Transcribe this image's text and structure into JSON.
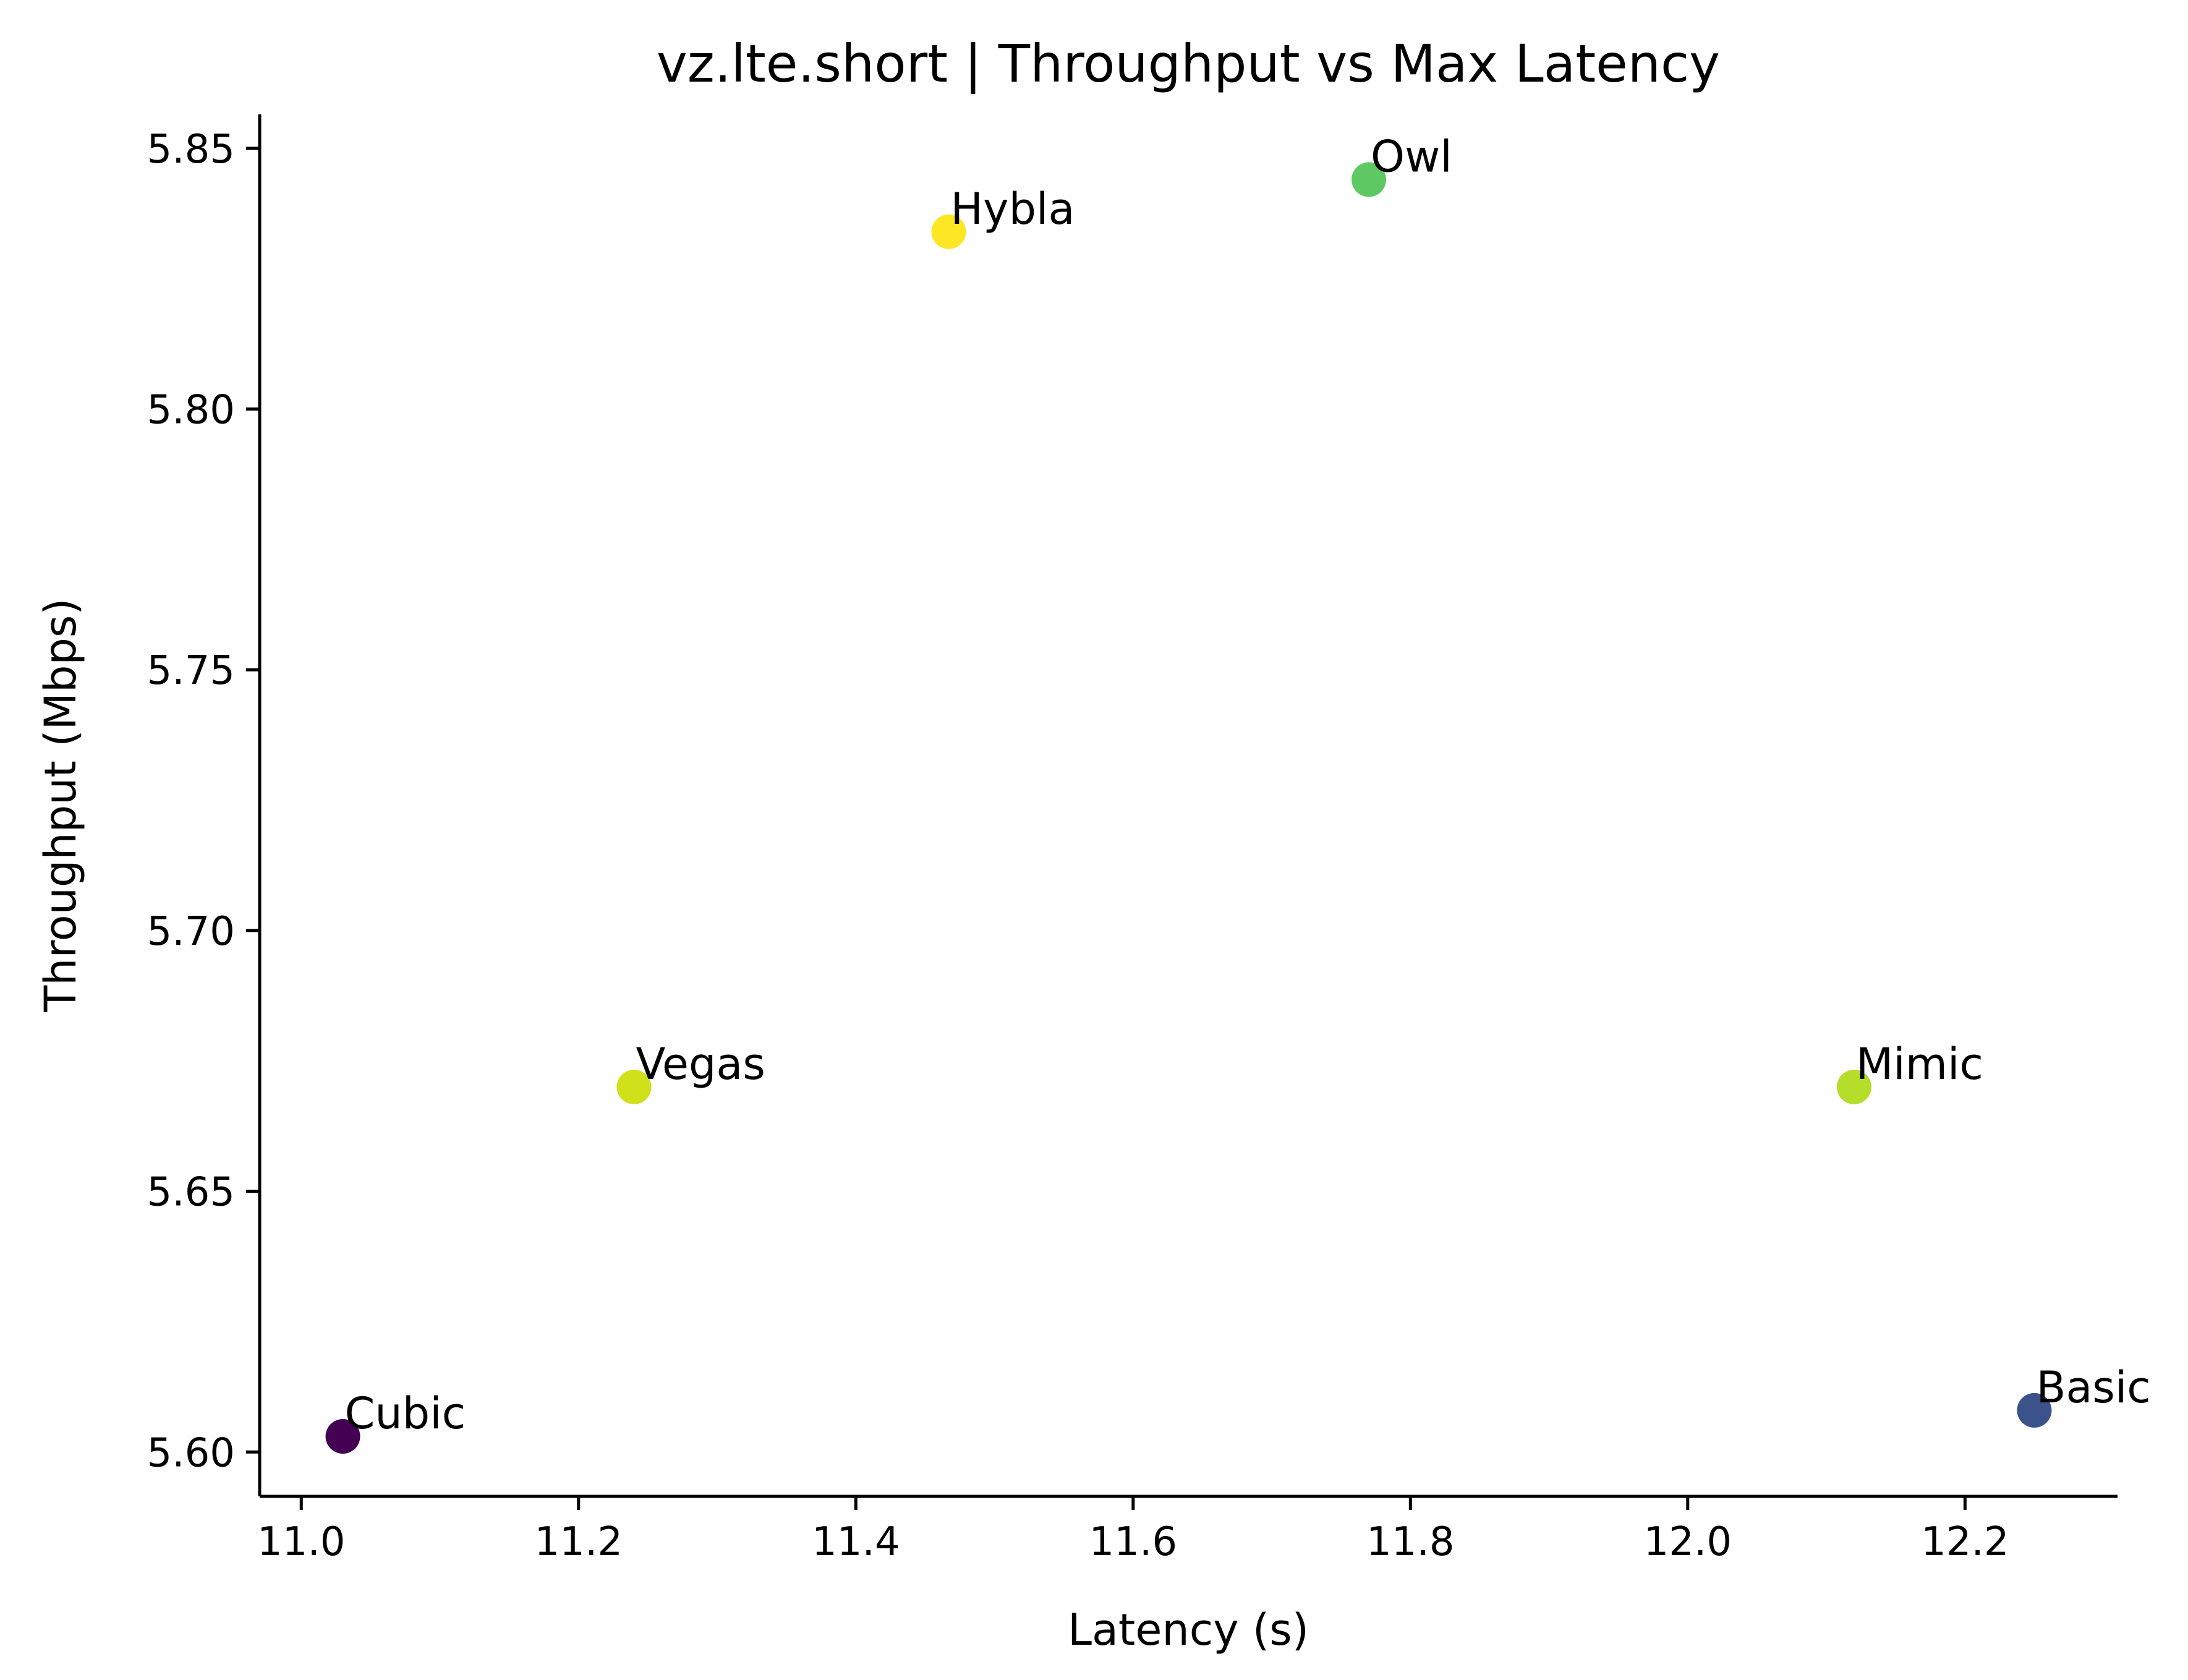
{
  "chart_data": {
    "type": "scatter",
    "title": "vz.lte.short | Throughput vs Max Latency",
    "xlabel": "Latency (s)",
    "ylabel": "Throughput (Mbps)",
    "xlim": [
      10.97,
      12.31
    ],
    "ylim": [
      5.5915,
      5.8565
    ],
    "xticks": [
      11.0,
      11.2,
      11.4,
      11.6,
      11.8,
      12.0,
      12.2
    ],
    "xtick_labels": [
      "11.0",
      "11.2",
      "11.4",
      "11.6",
      "11.8",
      "12.0",
      "12.2"
    ],
    "yticks": [
      5.6,
      5.65,
      5.7,
      5.75,
      5.8,
      5.85
    ],
    "ytick_labels": [
      "5.60",
      "5.65",
      "5.70",
      "5.75",
      "5.80",
      "5.85"
    ],
    "grid": false,
    "legend": "none",
    "points": [
      {
        "label": "Cubic",
        "x": 11.03,
        "y": 5.603,
        "color": "#440154"
      },
      {
        "label": "Vegas",
        "x": 11.24,
        "y": 5.67,
        "color": "#d0e11c"
      },
      {
        "label": "Hybla",
        "x": 11.467,
        "y": 5.834,
        "color": "#fde725"
      },
      {
        "label": "Owl",
        "x": 11.77,
        "y": 5.844,
        "color": "#5ec962"
      },
      {
        "label": "Mimic",
        "x": 12.12,
        "y": 5.67,
        "color": "#b5de2b"
      },
      {
        "label": "Basic",
        "x": 12.25,
        "y": 5.608,
        "color": "#3b528b"
      }
    ]
  }
}
